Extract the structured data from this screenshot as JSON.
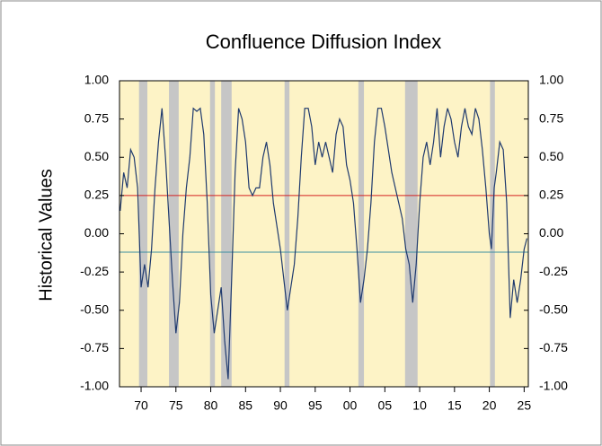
{
  "chart_data": {
    "type": "line",
    "title": "Confluence Diffusion Index",
    "ylabel": "Historical Values",
    "x": [
      1967.0,
      1967.5,
      1968.0,
      1968.5,
      1969.0,
      1969.5,
      1970.0,
      1970.5,
      1971.0,
      1971.5,
      1972.0,
      1972.5,
      1973.0,
      1973.5,
      1974.0,
      1974.5,
      1975.0,
      1975.5,
      1976.0,
      1976.5,
      1977.0,
      1977.5,
      1978.0,
      1978.5,
      1979.0,
      1979.5,
      1980.0,
      1980.5,
      1981.0,
      1981.5,
      1982.0,
      1982.5,
      1983.0,
      1983.5,
      1984.0,
      1984.5,
      1985.0,
      1985.5,
      1986.0,
      1986.5,
      1987.0,
      1987.5,
      1988.0,
      1988.5,
      1989.0,
      1989.5,
      1990.0,
      1990.5,
      1991.0,
      1991.5,
      1992.0,
      1992.5,
      1993.0,
      1993.5,
      1994.0,
      1994.5,
      1995.0,
      1995.5,
      1996.0,
      1996.5,
      1997.0,
      1997.5,
      1998.0,
      1998.5,
      1999.0,
      1999.5,
      2000.0,
      2000.5,
      2001.0,
      2001.5,
      2002.0,
      2002.5,
      2003.0,
      2003.5,
      2004.0,
      2004.5,
      2005.0,
      2005.5,
      2006.0,
      2006.5,
      2007.0,
      2007.5,
      2008.0,
      2008.5,
      2009.0,
      2009.5,
      2010.0,
      2010.5,
      2011.0,
      2011.5,
      2012.0,
      2012.5,
      2013.0,
      2013.5,
      2014.0,
      2014.5,
      2015.0,
      2015.5,
      2016.0,
      2016.5,
      2017.0,
      2017.5,
      2018.0,
      2018.5,
      2019.0,
      2019.5,
      2020.0,
      2020.3,
      2020.7,
      2021.0,
      2021.5,
      2022.0,
      2022.5,
      2023.0,
      2023.5,
      2024.0,
      2024.5,
      2025.0,
      2025.4
    ],
    "series": [
      {
        "color": "#1f3a6e",
        "values": [
          0.15,
          0.4,
          0.3,
          0.55,
          0.5,
          0.3,
          -0.35,
          -0.2,
          -0.35,
          -0.1,
          0.3,
          0.6,
          0.82,
          0.5,
          0.1,
          -0.3,
          -0.65,
          -0.45,
          0.0,
          0.3,
          0.5,
          0.82,
          0.8,
          0.82,
          0.65,
          0.2,
          -0.4,
          -0.65,
          -0.5,
          -0.35,
          -0.7,
          -0.95,
          -0.3,
          0.4,
          0.82,
          0.75,
          0.6,
          0.3,
          0.25,
          0.3,
          0.3,
          0.5,
          0.6,
          0.45,
          0.2,
          0.05,
          -0.1,
          -0.3,
          -0.5,
          -0.35,
          -0.2,
          0.1,
          0.5,
          0.82,
          0.82,
          0.7,
          0.45,
          0.6,
          0.5,
          0.6,
          0.5,
          0.4,
          0.65,
          0.75,
          0.7,
          0.45,
          0.35,
          0.2,
          -0.1,
          -0.45,
          -0.3,
          -0.1,
          0.2,
          0.6,
          0.82,
          0.82,
          0.7,
          0.55,
          0.4,
          0.3,
          0.2,
          0.1,
          -0.1,
          -0.2,
          -0.45,
          -0.2,
          0.2,
          0.5,
          0.6,
          0.45,
          0.6,
          0.82,
          0.5,
          0.7,
          0.82,
          0.75,
          0.6,
          0.5,
          0.7,
          0.82,
          0.7,
          0.65,
          0.82,
          0.75,
          0.55,
          0.3,
          0.0,
          -0.1,
          0.3,
          0.4,
          0.6,
          0.55,
          0.2,
          -0.55,
          -0.3,
          -0.45,
          -0.3,
          -0.1,
          -0.03
        ]
      }
    ],
    "recessions": [
      [
        1969.7,
        1970.9
      ],
      [
        1974.0,
        1975.4
      ],
      [
        1979.9,
        1980.6
      ],
      [
        1981.5,
        1983.0
      ],
      [
        1990.6,
        1991.3
      ],
      [
        2001.2,
        2002.0
      ],
      [
        2007.9,
        2009.7
      ],
      [
        2020.1,
        2020.8
      ]
    ],
    "ref_lines": [
      {
        "value": 0.25,
        "color": "#d42020"
      },
      {
        "value": -0.12,
        "color": "#3a8fa0"
      }
    ],
    "xlim": [
      1966.9,
      2025.6
    ],
    "xticks": [
      {
        "value": 1970,
        "label": "70"
      },
      {
        "value": 1975,
        "label": "75"
      },
      {
        "value": 1980,
        "label": "80"
      },
      {
        "value": 1985,
        "label": "85"
      },
      {
        "value": 1990,
        "label": "90"
      },
      {
        "value": 1995,
        "label": "95"
      },
      {
        "value": 2000,
        "label": "00"
      },
      {
        "value": 2005,
        "label": "05"
      },
      {
        "value": 2010,
        "label": "10"
      },
      {
        "value": 2015,
        "label": "15"
      },
      {
        "value": 2020,
        "label": "20"
      },
      {
        "value": 2025,
        "label": "25"
      }
    ],
    "ylim": [
      -1,
      1
    ],
    "yticks": [
      {
        "value": 1,
        "label": "1.00"
      },
      {
        "value": 0.75,
        "label": "0.75"
      },
      {
        "value": 0.5,
        "label": "0.50"
      },
      {
        "value": 0.25,
        "label": "0.25"
      },
      {
        "value": 0,
        "label": "0.00"
      },
      {
        "value": -0.25,
        "label": "-0.25"
      },
      {
        "value": -0.5,
        "label": "-0.50"
      },
      {
        "value": -0.75,
        "label": "-0.75"
      },
      {
        "value": -1,
        "label": "-1.00"
      }
    ],
    "y2lim": [
      -1,
      1
    ],
    "y2ticks": [
      {
        "value": 1,
        "label": "1.00"
      },
      {
        "value": 0.75,
        "label": "0.75"
      },
      {
        "value": 0.5,
        "label": "0.50"
      },
      {
        "value": 0.25,
        "label": "0.25"
      },
      {
        "value": 0,
        "label": "0.00"
      },
      {
        "value": -0.25,
        "label": "-0.25"
      },
      {
        "value": -0.5,
        "label": "-0.50"
      },
      {
        "value": -0.75,
        "label": "-0.75"
      },
      {
        "value": -1,
        "label": "-1.00"
      }
    ],
    "plot_color": "#fdf3c6",
    "recession_color": "#c6c6c6"
  }
}
